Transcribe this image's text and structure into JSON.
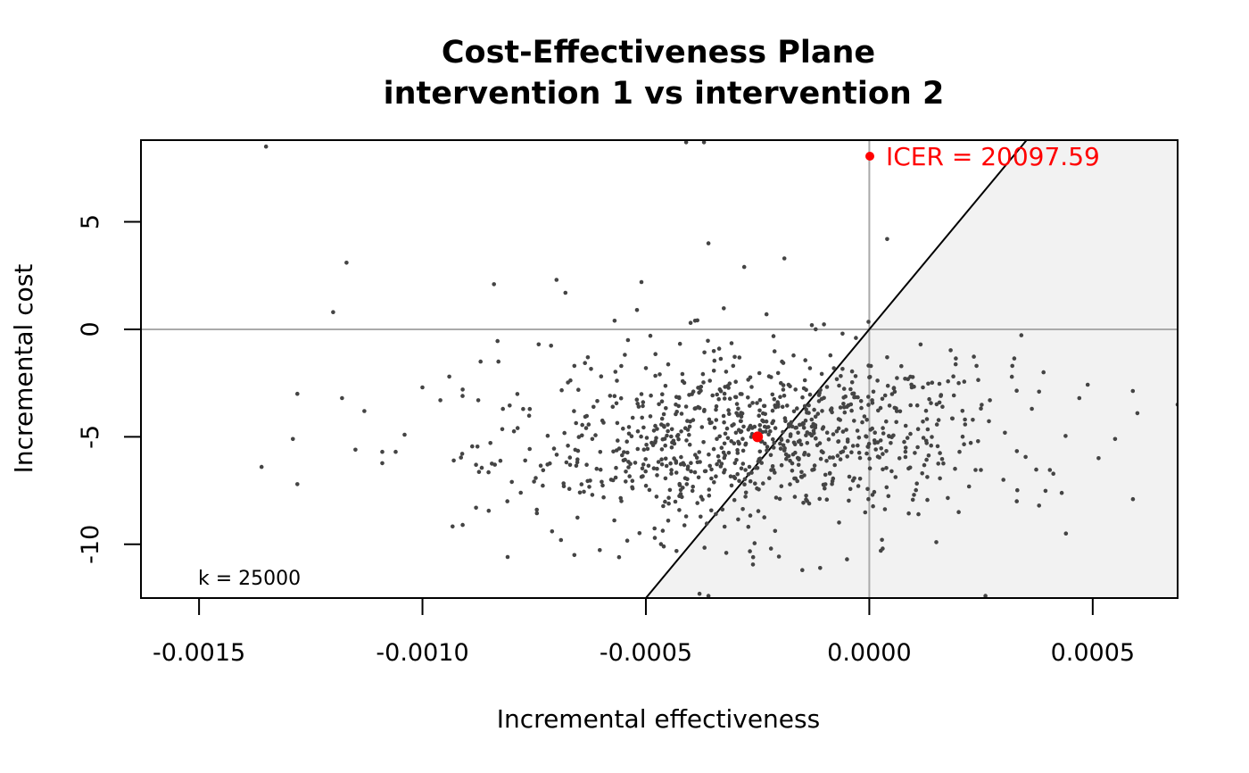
{
  "chart_data": {
    "type": "scatter",
    "title": "Cost-Effectiveness Plane",
    "subtitle": "intervention 1 vs intervention 2",
    "xlabel": "Incremental effectiveness",
    "ylabel": "Incremental cost",
    "xlim": [
      -0.00163,
      0.00069
    ],
    "ylim": [
      -12.5,
      8.8
    ],
    "x_ticks": [
      -0.0015,
      -0.001,
      -0.0005,
      0.0,
      0.0005
    ],
    "x_tick_labels": [
      "-0.0015",
      "-0.0010",
      "-0.0005",
      "0.0000",
      "0.0005"
    ],
    "y_ticks": [
      -10,
      -5,
      0,
      5
    ],
    "y_tick_labels": [
      "-10",
      "-5",
      "0",
      "5"
    ],
    "willingness_to_pay": 25000,
    "k_label": "k = 25000",
    "icer": {
      "x": -0.00025,
      "y": -5.0,
      "label": "ICER = 20097.59",
      "color": "#ff0000"
    },
    "point_color": "#444444",
    "region_fill": "#f2f2f2",
    "reference_line_color": "#aaaaaa",
    "n_simulations": 1000,
    "sample_points": [
      [
        -0.00135,
        8.5
      ],
      [
        -0.00117,
        3.1
      ],
      [
        -0.0012,
        0.8
      ],
      [
        -0.00084,
        2.1
      ],
      [
        -0.0007,
        2.3
      ],
      [
        -0.00068,
        1.7
      ],
      [
        -0.00051,
        2.2
      ],
      [
        -0.00052,
        0.9
      ],
      [
        -0.00057,
        0.4
      ],
      [
        -0.00036,
        4.0
      ],
      [
        -0.00028,
        2.9
      ],
      [
        -0.00019,
        3.3
      ],
      [
        4e-05,
        4.2
      ],
      [
        -0.00041,
        8.7
      ],
      [
        -0.00037,
        8.7
      ],
      [
        -0.00136,
        -6.4
      ],
      [
        -0.00128,
        -7.2
      ],
      [
        -0.00129,
        -5.1
      ],
      [
        -0.00128,
        -3.0
      ],
      [
        -0.00118,
        -3.2
      ],
      [
        -0.00113,
        -3.8
      ],
      [
        -0.00115,
        -5.6
      ],
      [
        -0.00109,
        -5.7
      ],
      [
        -0.00106,
        -5.7
      ],
      [
        -0.00104,
        -4.9
      ],
      [
        -0.001,
        -2.7
      ],
      [
        -0.00096,
        -3.3
      ],
      [
        -0.00094,
        -2.2
      ],
      [
        -0.00093,
        -6.1
      ],
      [
        -0.00091,
        -2.8
      ],
      [
        -0.00091,
        -9.1
      ],
      [
        -0.00088,
        -8.3
      ],
      [
        -0.00088,
        -6.3
      ],
      [
        -0.00087,
        -1.5
      ],
      [
        -0.00083,
        -1.5
      ],
      [
        -0.00082,
        -3.7
      ],
      [
        -0.00081,
        -8.0
      ],
      [
        -0.0008,
        -7.1
      ],
      [
        -0.00078,
        -7.6
      ],
      [
        -0.00077,
        -6.1
      ],
      [
        -0.00074,
        -0.7
      ],
      [
        -0.00071,
        -9.4
      ],
      [
        -0.00069,
        -9.8
      ],
      [
        -0.00066,
        -10.5
      ],
      [
        -0.00062,
        -7.7
      ],
      [
        -0.00056,
        -10.6
      ],
      [
        -0.00048,
        -9.7
      ],
      [
        -0.00046,
        -10.1
      ],
      [
        -0.00045,
        -8.9
      ],
      [
        -0.00041,
        -8.7
      ],
      [
        -0.00038,
        -12.3
      ],
      [
        -0.00036,
        -12.4
      ],
      [
        -0.00032,
        -10.4
      ],
      [
        -0.00026,
        -10.6
      ],
      [
        -0.00022,
        -10.2
      ],
      [
        -0.00015,
        -11.2
      ],
      [
        -0.00011,
        -11.1
      ],
      [
        -5e-05,
        -10.7
      ],
      [
        3e-05,
        -10.2
      ],
      [
        0.00026,
        -12.4
      ],
      [
        0.00015,
        -9.9
      ],
      [
        0.00011,
        -8.6
      ],
      [
        0.0002,
        -8.5
      ],
      [
        0.00038,
        -8.2
      ],
      [
        0.00044,
        -9.5
      ],
      [
        0.00059,
        -7.9
      ],
      [
        0.0006,
        -3.9
      ],
      [
        0.00069,
        -3.5
      ],
      [
        0.00055,
        -5.1
      ],
      [
        0.00047,
        -3.2
      ],
      [
        0.00039,
        -2.0
      ],
      [
        0.00038,
        -2.9
      ],
      [
        0.00032,
        -1.7
      ],
      [
        0.00027,
        -3.3
      ],
      [
        0.00024,
        -1.7
      ],
      [
        0.0002,
        -2.5
      ],
      [
        0.00016,
        -3.1
      ],
      [
        0.00012,
        -2.7
      ],
      [
        8e-05,
        -2.3
      ],
      [
        4e-05,
        -1.3
      ],
      [
        -3e-05,
        -0.4
      ],
      [
        -6e-05,
        -0.2
      ],
      [
        -0.00012,
        0.0
      ],
      [
        -0.00023,
        0.7
      ],
      [
        -0.0004,
        0.3
      ],
      [
        -0.00039,
        0.4
      ],
      [
        -0.00049,
        -0.3
      ],
      [
        -0.00054,
        -0.5
      ],
      [
        -0.00063,
        -1.3
      ],
      [
        -0.00066,
        -1.7
      ],
      [
        0.00033,
        -8.0
      ],
      [
        0.0003,
        -7.0
      ],
      [
        0.0001,
        -7.7
      ],
      [
        5e-05,
        -6.6
      ],
      [
        -0.0001,
        -7.4
      ]
    ]
  }
}
